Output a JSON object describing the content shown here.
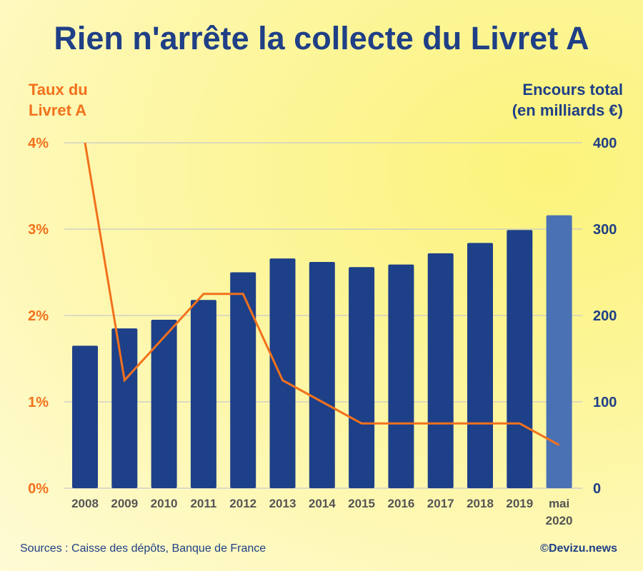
{
  "title": "Rien n'arrête la collecte du Livret A",
  "left_axis_title": [
    "Taux du",
    "Livret A"
  ],
  "right_axis_title": [
    "Encours total",
    "(en milliards €)"
  ],
  "source": "Sources : Caisse des dépôts, Banque de France",
  "credit": "©Devizu.news",
  "colors": {
    "bar": "#1e4088",
    "bar_highlight": "#4a71b4",
    "line": "#f2711c",
    "title": "#1f3f86"
  },
  "chart_data": {
    "type": "bar+line",
    "categories": [
      "2008",
      "2009",
      "2010",
      "2011",
      "2012",
      "2013",
      "2014",
      "2015",
      "2016",
      "2017",
      "2018",
      "2019",
      "mai 2020"
    ],
    "category_lines": [
      [
        "2008"
      ],
      [
        "2009"
      ],
      [
        "2010"
      ],
      [
        "2011"
      ],
      [
        "2012"
      ],
      [
        "2013"
      ],
      [
        "2014"
      ],
      [
        "2015"
      ],
      [
        "2016"
      ],
      [
        "2017"
      ],
      [
        "2018"
      ],
      [
        "2019"
      ],
      [
        "mai",
        "2020"
      ]
    ],
    "series": [
      {
        "name": "Encours total (en milliards €)",
        "type": "bar",
        "axis": "right",
        "values": [
          165,
          185,
          195,
          218,
          250,
          266,
          262,
          256,
          259,
          272,
          284,
          299,
          316
        ]
      },
      {
        "name": "Taux du Livret A",
        "type": "line",
        "axis": "left",
        "unit": "%",
        "values": [
          4.0,
          1.25,
          1.75,
          2.25,
          2.25,
          1.25,
          1.0,
          0.75,
          0.75,
          0.75,
          0.75,
          0.75,
          0.5
        ]
      }
    ],
    "left_axis": {
      "ticks": [
        "0%",
        "1%",
        "2%",
        "3%",
        "4%"
      ],
      "range": [
        0,
        4
      ]
    },
    "right_axis": {
      "ticks": [
        "0",
        "100",
        "200",
        "300",
        "400"
      ],
      "range": [
        0,
        400
      ]
    },
    "highlight_index": 12,
    "grid": true
  }
}
